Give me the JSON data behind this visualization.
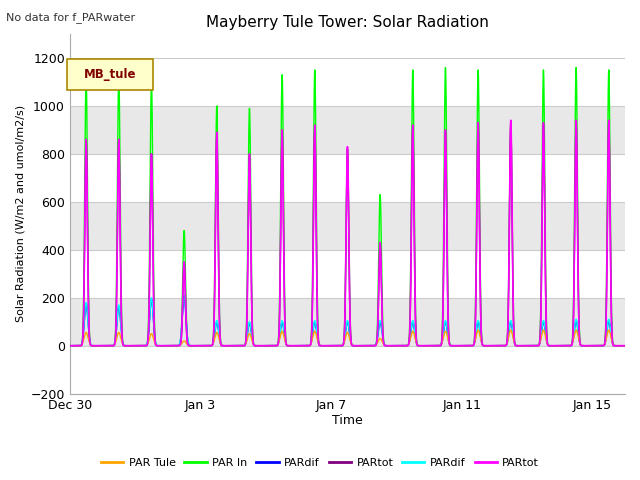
{
  "title": "Mayberry Tule Tower: Solar Radiation",
  "subtitle": "No data for f_PARwater",
  "ylabel": "Solar Radiation (W/m2 and umol/m2/s)",
  "xlabel": "Time",
  "ylim": [
    -200,
    1300
  ],
  "yticks": [
    -200,
    0,
    200,
    400,
    600,
    800,
    1000,
    1200
  ],
  "legend_label": "MB_tule",
  "series": [
    {
      "label": "PAR Tule",
      "color": "#ffa500"
    },
    {
      "label": "PAR In",
      "color": "#00ff00"
    },
    {
      "label": "PARdif",
      "color": "#0000ff"
    },
    {
      "label": "PARtot",
      "color": "#800080"
    },
    {
      "label": "PARdif",
      "color": "#00ffff"
    },
    {
      "label": "PARtot",
      "color": "#ff00ff"
    }
  ],
  "xtick_labels": [
    "Dec 30",
    "Jan 3",
    "Jan 7",
    "Jan 11",
    "Jan 15"
  ],
  "xtick_positions": [
    0,
    4,
    8,
    12,
    16
  ],
  "num_days": 17,
  "peaks_green": [
    1120,
    1130,
    1100,
    480,
    1000,
    990,
    1130,
    1150,
    820,
    630,
    1150,
    1160,
    1150,
    920,
    1150,
    1160,
    1150
  ],
  "peaks_magenta": [
    860,
    860,
    800,
    350,
    890,
    800,
    900,
    920,
    830,
    430,
    920,
    900,
    930,
    940,
    930,
    940,
    940
  ],
  "peaks_purple": [
    860,
    860,
    800,
    340,
    880,
    790,
    890,
    910,
    820,
    420,
    910,
    890,
    920,
    930,
    920,
    930,
    930
  ],
  "peaks_orange": [
    55,
    55,
    50,
    20,
    55,
    50,
    60,
    60,
    55,
    30,
    60,
    60,
    65,
    65,
    65,
    65,
    65
  ],
  "peaks_cyan": [
    180,
    170,
    200,
    210,
    105,
    100,
    105,
    105,
    105,
    105,
    105,
    105,
    105,
    105,
    105,
    110,
    110
  ],
  "peaks_blue": [
    175,
    165,
    195,
    205,
    100,
    95,
    100,
    100,
    100,
    100,
    100,
    100,
    100,
    100,
    100,
    105,
    105
  ],
  "band_colors": [
    "#ffffff",
    "#e8e8e8"
  ],
  "grid_color": "#cccccc"
}
